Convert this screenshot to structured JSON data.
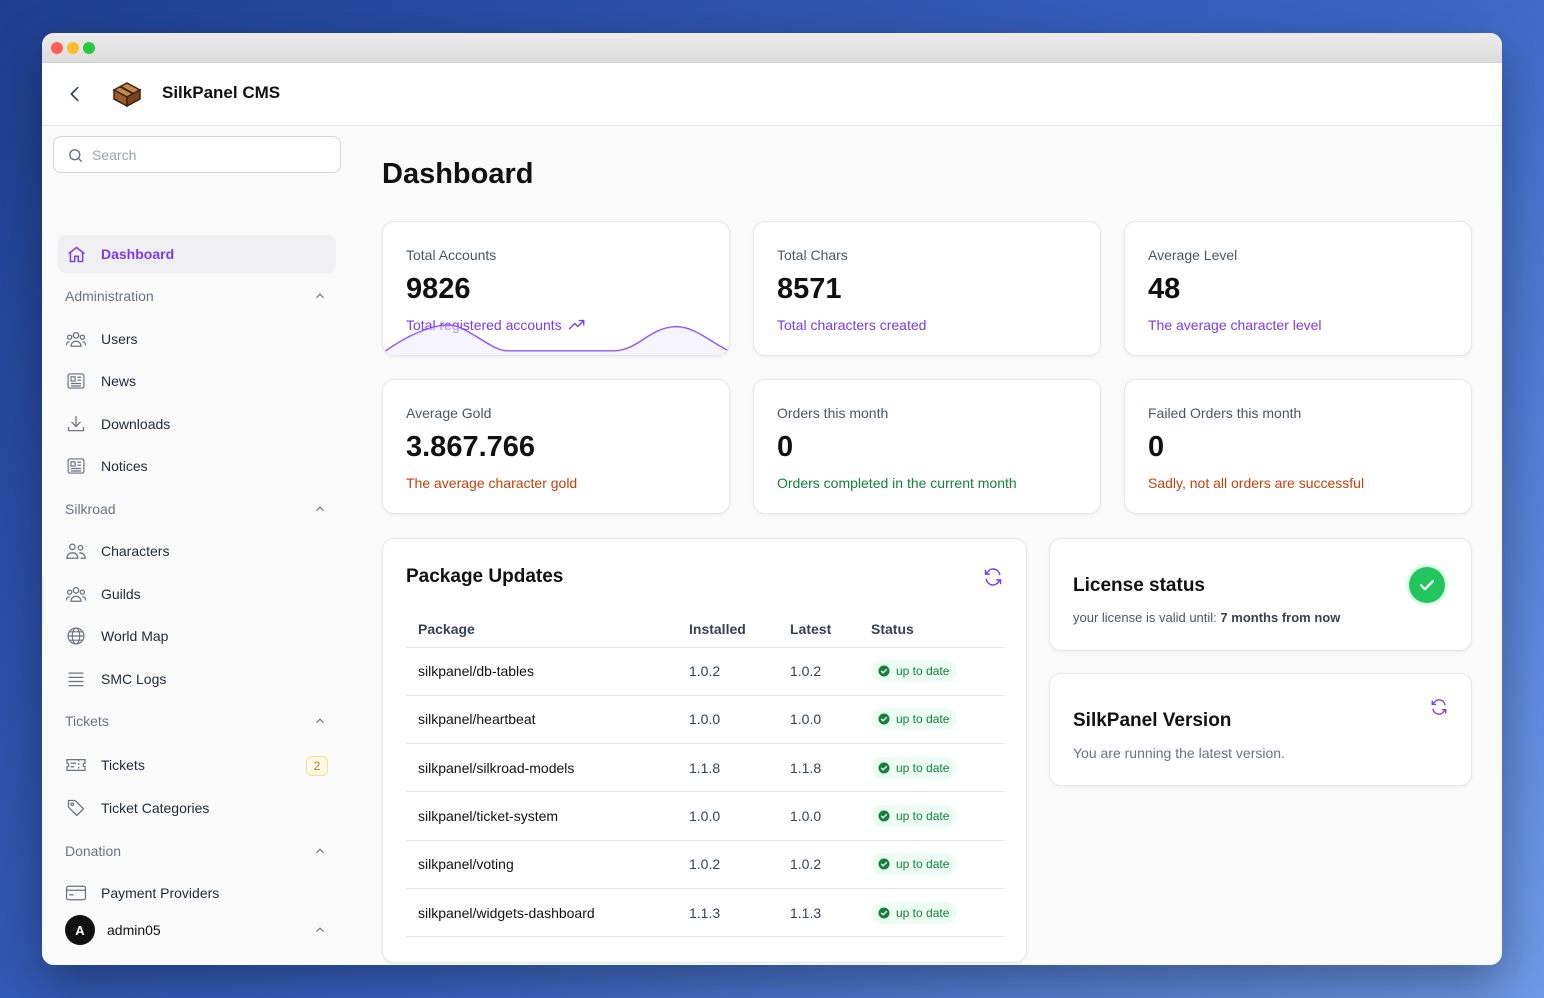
{
  "app": {
    "title": "SilkPanel CMS"
  },
  "search": {
    "placeholder": "Search"
  },
  "sidebar": {
    "dashboard": "Dashboard",
    "groups": {
      "administration": "Administration",
      "silkroad": "Silkroad",
      "tickets": "Tickets",
      "donation": "Donation"
    },
    "items": {
      "users": "Users",
      "news": "News",
      "downloads": "Downloads",
      "notices": "Notices",
      "characters": "Characters",
      "guilds": "Guilds",
      "world_map": "World Map",
      "smc_logs": "SMC Logs",
      "tickets": "Tickets",
      "ticket_categories": "Ticket Categories",
      "payment_providers": "Payment Providers"
    },
    "tickets_badge": "2"
  },
  "user": {
    "initial": "A",
    "name": "admin05"
  },
  "main": {
    "title": "Dashboard"
  },
  "stats": {
    "total_accounts": {
      "label": "Total Accounts",
      "value": "9826",
      "desc": "Total registered accounts"
    },
    "total_chars": {
      "label": "Total Chars",
      "value": "8571",
      "desc": "Total characters created"
    },
    "average_level": {
      "label": "Average Level",
      "value": "48",
      "desc": "The average character level"
    },
    "average_gold": {
      "label": "Average Gold",
      "value": "3.867.766",
      "desc": "The average character gold"
    },
    "orders_month": {
      "label": "Orders this month",
      "value": "0",
      "desc": "Orders completed in the current month"
    },
    "failed_orders": {
      "label": "Failed Orders this month",
      "value": "0",
      "desc": "Sadly, not all orders are successful"
    }
  },
  "packages": {
    "title": "Package Updates",
    "headers": {
      "package": "Package",
      "installed": "Installed",
      "latest": "Latest",
      "status": "Status"
    },
    "rows": [
      {
        "name": "silkpanel/db-tables",
        "installed": "1.0.2",
        "latest": "1.0.2",
        "status": "up to date"
      },
      {
        "name": "silkpanel/heartbeat",
        "installed": "1.0.0",
        "latest": "1.0.0",
        "status": "up to date"
      },
      {
        "name": "silkpanel/silkroad-models",
        "installed": "1.1.8",
        "latest": "1.1.8",
        "status": "up to date"
      },
      {
        "name": "silkpanel/ticket-system",
        "installed": "1.0.0",
        "latest": "1.0.0",
        "status": "up to date"
      },
      {
        "name": "silkpanel/voting",
        "installed": "1.0.2",
        "latest": "1.0.2",
        "status": "up to date"
      },
      {
        "name": "silkpanel/widgets-dashboard",
        "installed": "1.1.3",
        "latest": "1.1.3",
        "status": "up to date"
      }
    ]
  },
  "license": {
    "title": "License status",
    "desc_prefix": "your license is valid until:",
    "valid_until": "7 months from now"
  },
  "version": {
    "title": "SilkPanel Version",
    "desc": "You are running the latest version."
  },
  "colors": {
    "accent": "#7c3aed",
    "success": "#22c55e",
    "warning": "#c2410c"
  },
  "icons": {
    "back": "chevron-left-icon",
    "logo": "box-logo-icon",
    "search": "search-icon",
    "dashboard": "home-icon",
    "users": "users-icon",
    "news": "newspaper-icon",
    "downloads": "download-icon",
    "notices": "newspaper-icon",
    "characters": "user-group-icon",
    "guilds": "users-icon",
    "world_map": "globe-icon",
    "smc_logs": "list-icon",
    "tickets": "ticket-icon",
    "ticket_categories": "tag-icon",
    "payment_providers": "credit-card-icon",
    "refresh": "refresh-icon",
    "check": "check-circle-icon",
    "trend": "trending-up-icon"
  }
}
